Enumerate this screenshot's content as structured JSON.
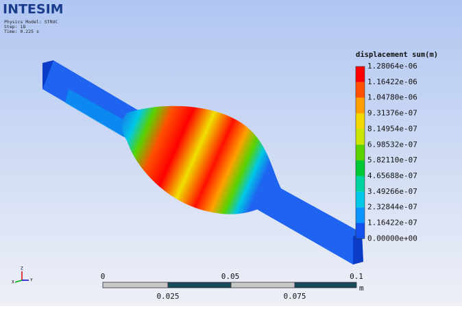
{
  "header": {
    "logo": "INTESIM",
    "info": [
      "Physics Model: STRUC",
      "Step: 18",
      "Time: 0.225 s"
    ]
  },
  "legend": {
    "title": "displacement sum(m)",
    "labels": [
      "1.28064e-06",
      "1.16422e-06",
      "1.04780e-06",
      "9.31376e-07",
      "8.14954e-07",
      "6.98532e-07",
      "5.82110e-07",
      "4.65688e-07",
      "3.49266e-07",
      "2.32844e-07",
      "1.16422e-07",
      "0.00000e+00"
    ],
    "colors": [
      "#ff0000",
      "#ff5000",
      "#ffa000",
      "#f0d800",
      "#c8e600",
      "#5ad200",
      "#00c832",
      "#00d2a0",
      "#00c8e6",
      "#0a96ff",
      "#1450f0"
    ]
  },
  "scale_bar": {
    "top_labels": [
      "0",
      "0.05",
      "0.1"
    ],
    "bottom_labels": [
      "0.025",
      "0.075"
    ],
    "unit": "m"
  },
  "triad": {
    "labels": [
      "Z",
      "X",
      "Y"
    ]
  }
}
